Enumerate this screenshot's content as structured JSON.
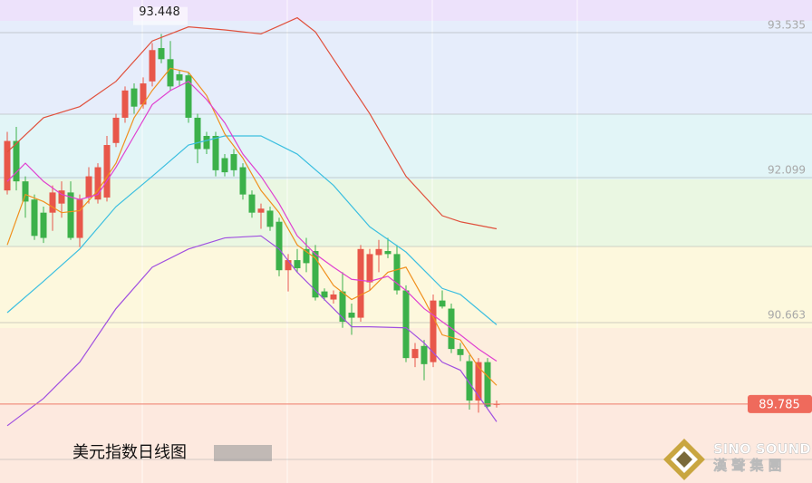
{
  "chart_data": {
    "type": "candlestick",
    "ylim": [
      89.003,
      93.786
    ],
    "yticks": [
      93.535,
      92.099,
      90.663
    ],
    "high_label": 93.448,
    "last_price": 89.785,
    "caption": "美元指数日线图",
    "up_color": "#e8574a",
    "down_color": "#3cb14a",
    "open": [
      91.9,
      92.39,
      91.99,
      91.81,
      91.68,
      91.68,
      91.77,
      91.88,
      91.43,
      91.83,
      91.81,
      91.83,
      92.37,
      92.62,
      92.91,
      92.75,
      92.98,
      93.31,
      93.2,
      93.05,
      93.04,
      92.62,
      92.44,
      92.44,
      92.22,
      92.26,
      92.13,
      91.86,
      91.68,
      91.7,
      91.59,
      91.11,
      91.21,
      91.32,
      91.3,
      90.9,
      90.82,
      90.9,
      90.69,
      90.64,
      90.99,
      91.26,
      91.3,
      91.27,
      90.91,
      90.24,
      90.36,
      90.2,
      90.81,
      90.73,
      90.33,
      90.21,
      89.82,
      90.2,
      89.78
    ],
    "high": [
      92.48,
      92.53,
      92.04,
      91.86,
      91.74,
      91.95,
      91.99,
      91.99,
      91.86,
      92.13,
      92.17,
      92.44,
      92.66,
      92.93,
      92.96,
      93.02,
      93.36,
      93.45,
      93.38,
      93.09,
      93.07,
      92.66,
      92.48,
      92.48,
      92.26,
      92.31,
      92.17,
      91.9,
      91.77,
      91.74,
      91.63,
      91.27,
      91.32,
      91.43,
      91.36,
      90.93,
      90.91,
      91.09,
      90.78,
      91.36,
      91.32,
      91.41,
      91.43,
      91.36,
      90.96,
      90.39,
      90.42,
      90.87,
      90.91,
      90.78,
      90.39,
      90.27,
      90.24,
      90.24,
      89.82
    ],
    "low": [
      91.86,
      91.9,
      91.63,
      91.41,
      91.38,
      91.5,
      91.63,
      91.41,
      91.34,
      91.77,
      91.77,
      91.79,
      92.33,
      92.57,
      92.66,
      92.71,
      92.93,
      93.16,
      92.89,
      92.93,
      92.57,
      92.17,
      92.26,
      92.04,
      92.04,
      92.04,
      91.81,
      91.63,
      91.52,
      91.5,
      91.05,
      90.9,
      91.09,
      91.09,
      90.81,
      90.81,
      90.78,
      90.54,
      90.47,
      90.6,
      90.91,
      91.09,
      91.23,
      90.87,
      90.2,
      90.15,
      90.02,
      90.15,
      90.73,
      90.29,
      90.21,
      89.73,
      89.7,
      89.75,
      89.75
    ],
    "close": [
      92.39,
      91.99,
      91.79,
      91.45,
      91.43,
      91.88,
      91.9,
      91.43,
      91.81,
      92.04,
      92.13,
      92.35,
      92.62,
      92.89,
      92.73,
      92.96,
      93.29,
      93.2,
      92.93,
      92.99,
      92.62,
      92.31,
      92.31,
      92.1,
      92.08,
      92.1,
      91.86,
      91.68,
      91.72,
      91.54,
      91.11,
      91.21,
      91.13,
      91.18,
      90.84,
      90.84,
      90.87,
      90.6,
      90.64,
      91.32,
      91.27,
      91.32,
      91.27,
      90.91,
      90.24,
      90.33,
      90.18,
      90.81,
      90.75,
      90.33,
      90.27,
      89.82,
      90.2,
      89.76,
      89.785
    ],
    "lines": [
      {
        "color": "#e0503c",
        "x": [
          0,
          4,
          8,
          12,
          16,
          20,
          24,
          28,
          30,
          32,
          34,
          36,
          40,
          44,
          48,
          50,
          54
        ],
        "values": [
          92.28,
          92.62,
          92.73,
          92.98,
          93.38,
          93.52,
          93.49,
          93.45,
          93.53,
          93.61,
          93.47,
          93.2,
          92.66,
          92.04,
          91.65,
          91.59,
          91.52
        ]
      },
      {
        "color": "#3cbfe0",
        "x": [
          0,
          4,
          8,
          12,
          16,
          20,
          24,
          28,
          32,
          36,
          40,
          44,
          48,
          50,
          54
        ],
        "values": [
          90.69,
          91.0,
          91.32,
          91.74,
          92.04,
          92.35,
          92.44,
          92.44,
          92.26,
          91.95,
          91.54,
          91.29,
          90.93,
          90.87,
          90.57
        ]
      },
      {
        "color": "#a050e0",
        "x": [
          0,
          4,
          8,
          12,
          16,
          20,
          24,
          28,
          30,
          32,
          34,
          36,
          38,
          40,
          44,
          46,
          48,
          50,
          54
        ],
        "values": [
          89.57,
          89.84,
          90.2,
          90.73,
          91.14,
          91.32,
          91.43,
          91.45,
          91.32,
          91.09,
          90.91,
          90.73,
          90.55,
          90.55,
          90.54,
          90.39,
          90.2,
          90.12,
          89.61
        ]
      },
      {
        "color": "#f0901e",
        "x": [
          0,
          2,
          4,
          6,
          8,
          10,
          12,
          14,
          16,
          18,
          20,
          22,
          24,
          26,
          28,
          30,
          32,
          34,
          36,
          38,
          40,
          42,
          44,
          46,
          48,
          50,
          52,
          54
        ],
        "values": [
          91.36,
          91.86,
          91.79,
          91.68,
          91.7,
          91.9,
          92.17,
          92.62,
          92.89,
          93.11,
          93.07,
          92.84,
          92.46,
          92.22,
          91.9,
          91.68,
          91.36,
          91.23,
          90.96,
          90.82,
          90.91,
          91.09,
          91.14,
          90.82,
          90.47,
          90.42,
          90.15,
          89.97
        ]
      },
      {
        "color": "#e040d0",
        "x": [
          0,
          2,
          4,
          6,
          8,
          10,
          12,
          14,
          16,
          18,
          20,
          22,
          24,
          26,
          28,
          30,
          32,
          34,
          36,
          38,
          40,
          42,
          44,
          46,
          48,
          50,
          52,
          54
        ],
        "values": [
          91.99,
          92.17,
          91.99,
          91.86,
          91.81,
          91.86,
          92.13,
          92.44,
          92.75,
          92.89,
          92.98,
          92.8,
          92.57,
          92.26,
          92.04,
          91.77,
          91.45,
          91.27,
          91.14,
          91.02,
          91.0,
          91.05,
          90.91,
          90.73,
          90.6,
          90.47,
          90.33,
          90.21
        ]
      }
    ]
  },
  "logo": {
    "en": "SINO SOUND",
    "zh": "漢 聲 集 團"
  }
}
